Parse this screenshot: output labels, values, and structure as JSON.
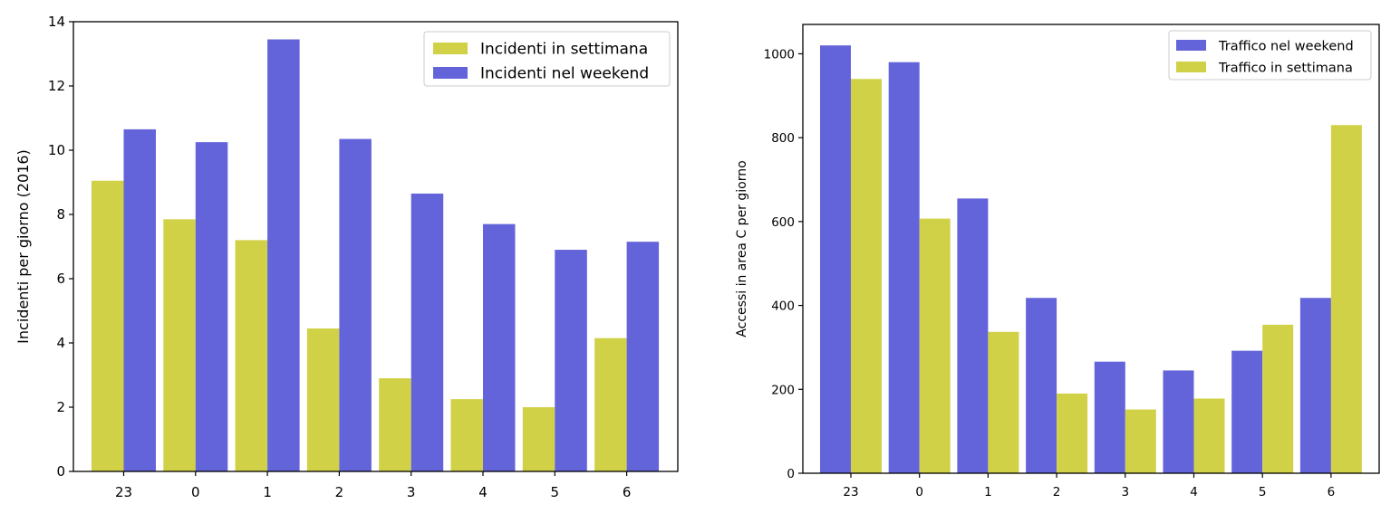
{
  "chart_data": [
    {
      "type": "bar",
      "title": "",
      "xlabel": "",
      "ylabel": "Incidenti per giorno (2016)",
      "categories": [
        "23",
        "0",
        "1",
        "2",
        "3",
        "4",
        "5",
        "6"
      ],
      "ylim": [
        0,
        14
      ],
      "yticks": [
        0,
        2,
        4,
        6,
        8,
        10,
        12,
        14
      ],
      "legend_position": "top-right",
      "grid": false,
      "series": [
        {
          "name": "Incidenti in settimana",
          "color": "#cccc33",
          "values": [
            9.05,
            7.85,
            7.2,
            4.45,
            2.9,
            2.25,
            2.0,
            4.15
          ]
        },
        {
          "name": "Incidenti nel weekend",
          "color": "#5353d6",
          "values": [
            10.65,
            10.25,
            13.45,
            10.35,
            8.65,
            7.7,
            6.9,
            7.15
          ]
        }
      ]
    },
    {
      "type": "bar",
      "title": "",
      "xlabel": "",
      "ylabel": "Accessi in area C per giorno",
      "categories": [
        "23",
        "0",
        "1",
        "2",
        "3",
        "4",
        "5",
        "6"
      ],
      "ylim": [
        0,
        1070
      ],
      "yticks": [
        0,
        200,
        400,
        600,
        800,
        1000
      ],
      "legend_position": "top-right",
      "grid": false,
      "series": [
        {
          "name": "Traffico nel weekend",
          "color": "#5353d6",
          "values": [
            1020,
            980,
            655,
            418,
            266,
            245,
            292,
            418
          ]
        },
        {
          "name": "Traffico in settimana",
          "color": "#cccc33",
          "values": [
            940,
            607,
            337,
            190,
            152,
            178,
            354,
            830
          ]
        }
      ]
    }
  ]
}
